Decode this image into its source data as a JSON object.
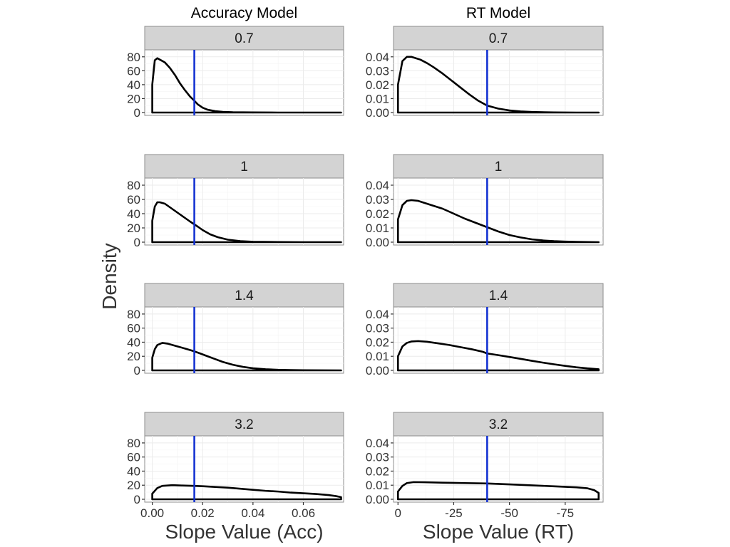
{
  "chart_data": {
    "type": "line",
    "y_axis_title": "Density",
    "columns": [
      {
        "title": "Accuracy Model",
        "xlabel": "Slope Value (Acc)",
        "xlim": [
          -0.003,
          0.076
        ],
        "x_ticks": [
          0,
          0.02,
          0.04,
          0.06
        ],
        "x_tick_labels": [
          "0.00",
          "0.02",
          "0.04",
          "0.06"
        ],
        "ylim": [
          0,
          90
        ],
        "y_ticks": [
          0,
          20,
          40,
          60,
          80
        ],
        "y_tick_labels": [
          "0",
          "20",
          "40",
          "60",
          "80"
        ],
        "reference_x": 0.0167,
        "reference_color": "#1432d2",
        "panels": [
          {
            "strip": "0.7",
            "x": [
              0,
              0,
              0.001,
              0.002,
              0.003,
              0.005,
              0.007,
              0.009,
              0.011,
              0.013,
              0.015,
              0.0167,
              0.018,
              0.02,
              0.022,
              0.025,
              0.028,
              0.032,
              0.04,
              0.05,
              0.06,
              0.075,
              0.075
            ],
            "y": [
              0,
              40,
              75,
              78,
              76,
              72,
              64,
              54,
              42,
              32,
              23,
              17,
              12,
              7,
              4,
              2,
              1,
              0.5,
              0.2,
              0,
              0,
              0,
              0
            ]
          },
          {
            "strip": "1",
            "x": [
              0,
              0,
              0.001,
              0.002,
              0.003,
              0.005,
              0.007,
              0.009,
              0.011,
              0.013,
              0.015,
              0.0167,
              0.018,
              0.02,
              0.023,
              0.026,
              0.03,
              0.035,
              0.04,
              0.05,
              0.06,
              0.075,
              0.075
            ],
            "y": [
              0,
              30,
              50,
              56,
              56,
              54,
              49,
              44,
              39,
              34,
              29,
              25,
              22,
              17,
              11,
              7,
              3.5,
              1.5,
              0.6,
              0.2,
              0,
              0,
              0
            ]
          },
          {
            "strip": "1.4",
            "x": [
              0,
              0,
              0.001,
              0.002,
              0.004,
              0.006,
              0.008,
              0.01,
              0.013,
              0.0167,
              0.019,
              0.022,
              0.025,
              0.028,
              0.032,
              0.036,
              0.04,
              0.045,
              0.05,
              0.055,
              0.06,
              0.075,
              0.075
            ],
            "y": [
              0,
              18,
              30,
              36,
              39,
              38,
              36,
              34,
              31,
              27,
              24,
              20,
              16,
              12,
              8,
              5,
              3,
              1.6,
              0.8,
              0.4,
              0.2,
              0,
              0
            ]
          },
          {
            "strip": "3.2",
            "x": [
              0,
              0,
              0.002,
              0.004,
              0.008,
              0.012,
              0.0167,
              0.02,
              0.025,
              0.03,
              0.035,
              0.04,
              0.045,
              0.05,
              0.055,
              0.06,
              0.065,
              0.07,
              0.073,
              0.075,
              0.075
            ],
            "y": [
              0,
              8,
              16,
              19,
              20,
              19.5,
              19,
              18.5,
              17.5,
              16.5,
              15,
              13.5,
              12,
              11,
              9.5,
              8.5,
              7.5,
              6,
              4.5,
              3,
              0
            ]
          }
        ]
      },
      {
        "title": "RT Model",
        "xlabel": "Slope Value (RT)",
        "xlim": [
          2,
          -92
        ],
        "x_ticks": [
          0,
          -25,
          -50,
          -75
        ],
        "x_tick_labels": [
          "0",
          "-25",
          "-50",
          "-75"
        ],
        "ylim": [
          0,
          0.045
        ],
        "y_ticks": [
          0,
          0.01,
          0.02,
          0.03,
          0.04
        ],
        "y_tick_labels": [
          "0.00",
          "0.01",
          "0.02",
          "0.03",
          "0.04"
        ],
        "reference_x": -40,
        "reference_color": "#1432d2",
        "panels": [
          {
            "strip": "0.7",
            "x": [
              0,
              0,
              -2,
              -4,
              -6,
              -8,
              -10,
              -13,
              -16,
              -20,
              -24,
              -28,
              -32,
              -36,
              -40,
              -45,
              -50,
              -55,
              -60,
              -70,
              -80,
              -90,
              -90
            ],
            "y": [
              0,
              0.02,
              0.037,
              0.04,
              0.04,
              0.039,
              0.038,
              0.0355,
              0.0325,
              0.028,
              0.023,
              0.018,
              0.013,
              0.0085,
              0.005,
              0.0028,
              0.0015,
              0.0008,
              0.0004,
              0.0001,
              0,
              0,
              0
            ]
          },
          {
            "strip": "1",
            "x": [
              0,
              0,
              -2,
              -4,
              -6,
              -9,
              -12,
              -16,
              -20,
              -25,
              -30,
              -35,
              -40,
              -45,
              -50,
              -55,
              -60,
              -65,
              -70,
              -75,
              -80,
              -90,
              -90
            ],
            "y": [
              0,
              0.016,
              0.026,
              0.029,
              0.0295,
              0.029,
              0.0275,
              0.0255,
              0.0235,
              0.02,
              0.0165,
              0.0135,
              0.0105,
              0.0075,
              0.005,
              0.0033,
              0.002,
              0.0012,
              0.0007,
              0.0004,
              0.0002,
              0,
              0
            ]
          },
          {
            "strip": "1.4",
            "x": [
              0,
              0,
              -2,
              -4,
              -6,
              -9,
              -13,
              -18,
              -23,
              -28,
              -33,
              -38,
              -40,
              -45,
              -50,
              -55,
              -60,
              -65,
              -70,
              -75,
              -80,
              -85,
              -90,
              -90
            ],
            "y": [
              0,
              0.01,
              0.017,
              0.0195,
              0.0205,
              0.0208,
              0.0203,
              0.0192,
              0.018,
              0.0165,
              0.015,
              0.0132,
              0.012,
              0.0108,
              0.0095,
              0.0082,
              0.0068,
              0.0055,
              0.0043,
              0.0032,
              0.0022,
              0.0014,
              0.0008,
              0
            ]
          },
          {
            "strip": "3.2",
            "x": [
              0,
              0,
              -2,
              -4,
              -7,
              -12,
              -20,
              -30,
              -40,
              -50,
              -60,
              -70,
              -80,
              -85,
              -88,
              -90,
              -90
            ],
            "y": [
              0,
              0.0055,
              0.0095,
              0.0115,
              0.0122,
              0.0121,
              0.0118,
              0.0115,
              0.0112,
              0.0106,
              0.0099,
              0.0092,
              0.0085,
              0.0078,
              0.0065,
              0.0045,
              0
            ]
          }
        ]
      }
    ]
  }
}
